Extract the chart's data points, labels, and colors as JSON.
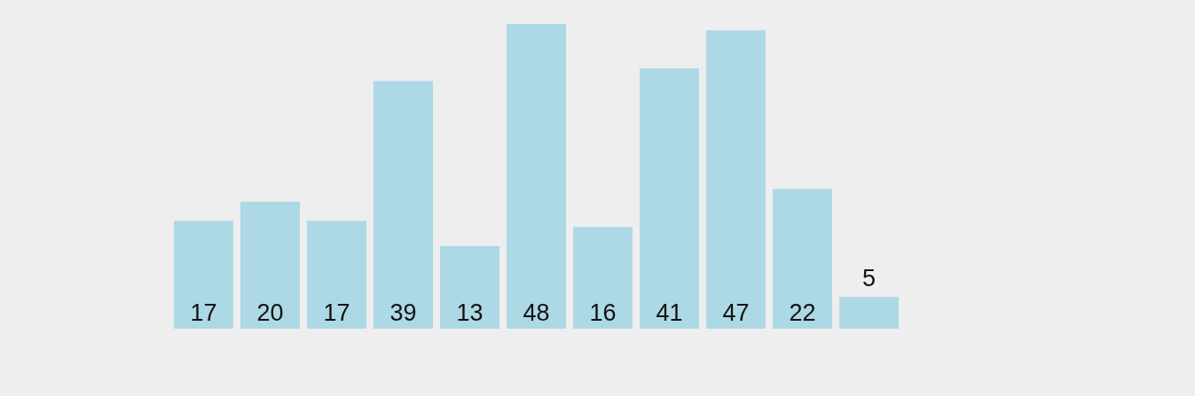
{
  "chart_data": {
    "type": "bar",
    "categories": [
      null,
      null,
      null,
      null,
      null,
      null,
      null,
      null,
      null,
      null,
      null
    ],
    "values": [
      17,
      20,
      17,
      39,
      13,
      48,
      16,
      41,
      47,
      22,
      5
    ],
    "color": "#add8e6",
    "data_labels": true
  }
}
